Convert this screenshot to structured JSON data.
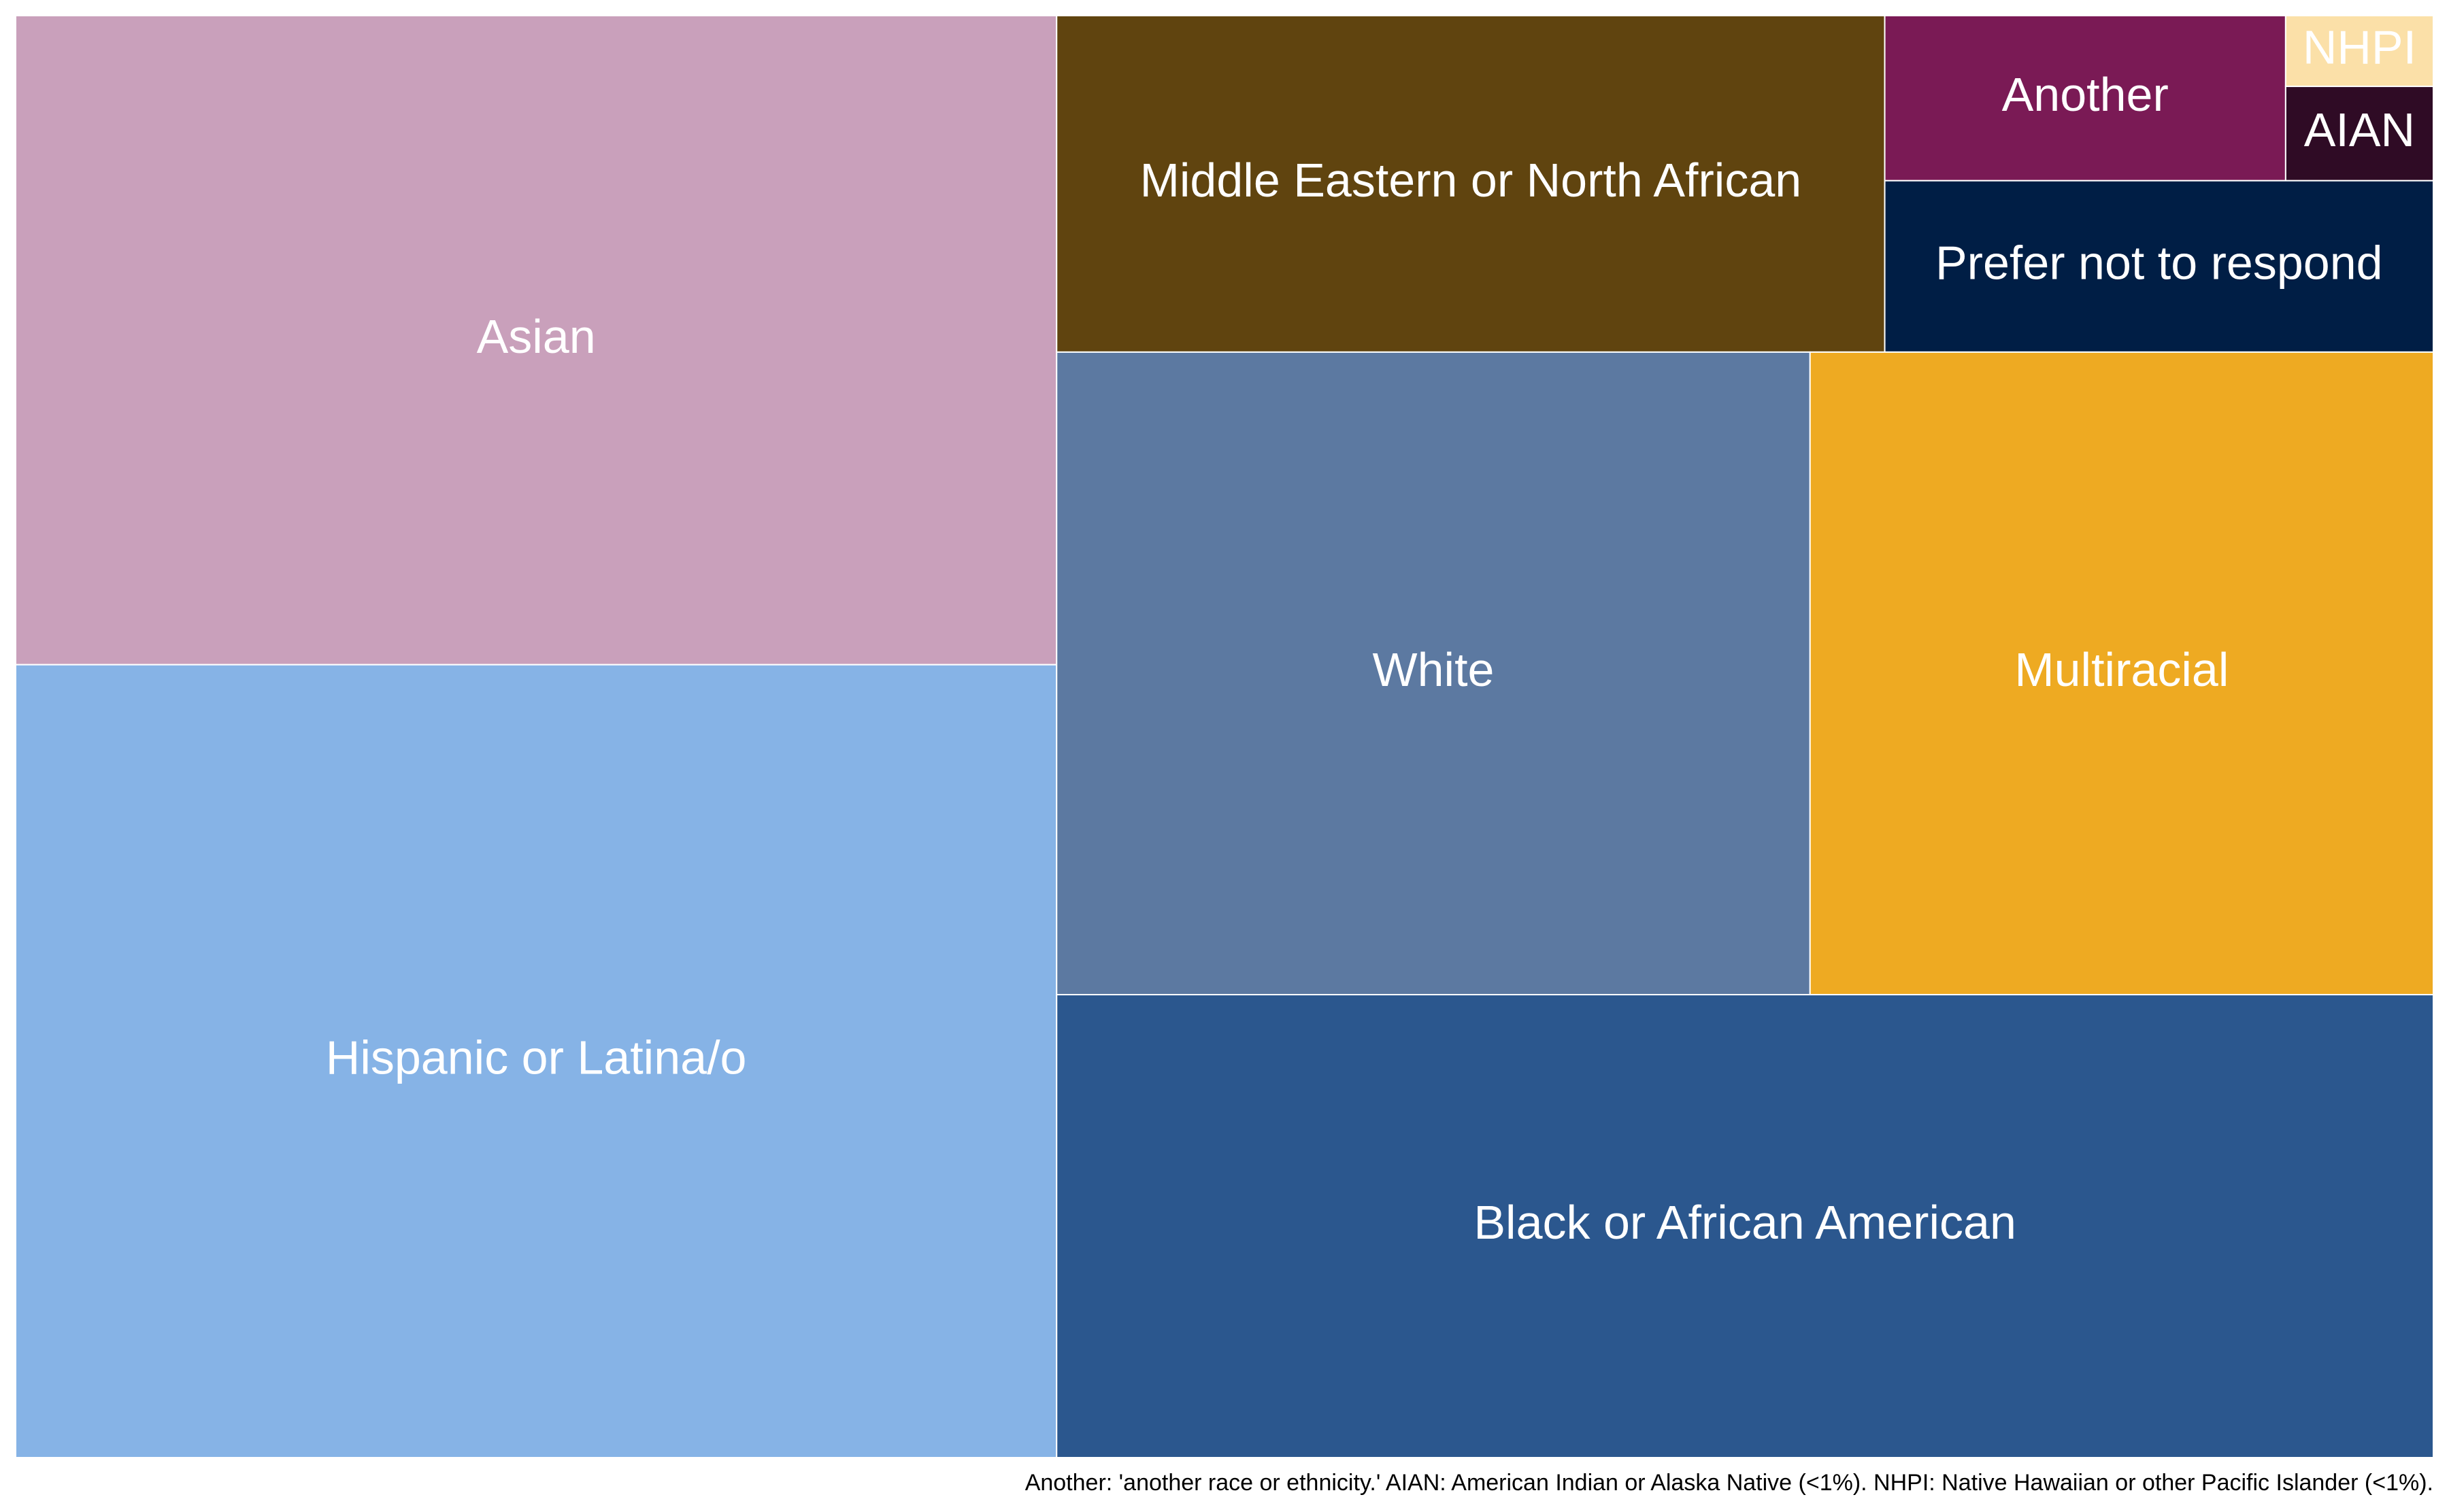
{
  "chart_data": {
    "type": "treemap",
    "caption": "Another: 'another race or ethnicity.' AIAN: American Indian or Alaska Native (<1%). NHPI: Native Hawaiian or other Pacific Islander (<1%).",
    "categories": [
      "Asian",
      "Hispanic or Latina/o",
      "Middle Eastern or North African",
      "Another",
      "NHPI",
      "AIAN",
      "Prefer not to respond",
      "White",
      "Multiracial",
      "Black or African American"
    ],
    "values": [
      19.4,
      23.7,
      8.0,
      1.9,
      0.3,
      0.4,
      2.7,
      13.9,
      11.5,
      18.3
    ],
    "colors": [
      "#c9a0bb",
      "#86b3e6",
      "#60440f",
      "#7a1a55",
      "#fbe0a8",
      "#2f0b25",
      "#001e45",
      "#5c79a1",
      "#eeaa22",
      "#2b578e"
    ]
  }
}
